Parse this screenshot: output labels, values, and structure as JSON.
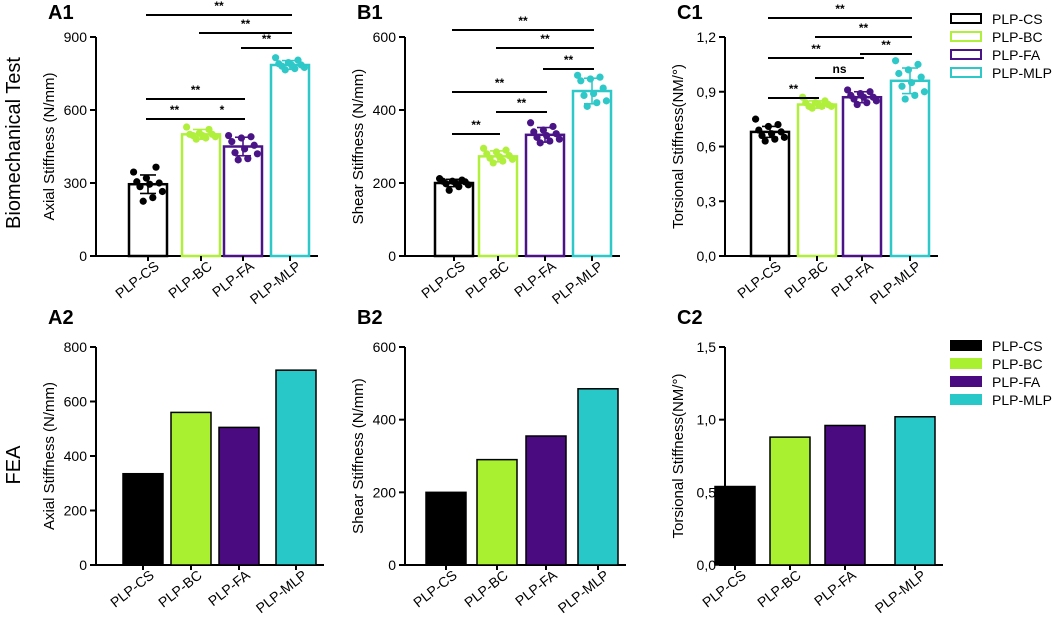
{
  "row_labels": {
    "top": "Biomechanical Test",
    "bottom": "FEA"
  },
  "legend_top": [
    {
      "label": "PLP-CS",
      "color": "#000000",
      "style": "outline"
    },
    {
      "label": "PLP-BC",
      "color": "#b0f03c",
      "style": "outline"
    },
    {
      "label": "PLP-FA",
      "color": "#4a1486",
      "style": "outline"
    },
    {
      "label": "PLP-MLP",
      "color": "#2fc8c8",
      "style": "outline"
    }
  ],
  "legend_bottom": [
    {
      "label": "PLP-CS",
      "color": "#000000",
      "style": "filled"
    },
    {
      "label": "PLP-BC",
      "color": "#a8f030",
      "style": "filled"
    },
    {
      "label": "PLP-FA",
      "color": "#4a0a80",
      "style": "filled"
    },
    {
      "label": "PLP-MLP",
      "color": "#28c8c8",
      "style": "filled"
    }
  ],
  "chart_data": [
    {
      "panel": "A1",
      "type": "bar",
      "style": "outline",
      "categories": [
        "PLP-CS",
        "PLP-BC",
        "PLP-FA",
        "PLP-MLP"
      ],
      "values": [
        295,
        500,
        450,
        785
      ],
      "errors": [
        38,
        20,
        38,
        18
      ],
      "points": [
        [
          345,
          365,
          320,
          305,
          300,
          295,
          285,
          265,
          240,
          225
        ],
        [
          530,
          520,
          505,
          500,
          500,
          495,
          495,
          490,
          485,
          480
        ],
        [
          495,
          490,
          485,
          470,
          455,
          440,
          425,
          420,
          400,
          395
        ],
        [
          815,
          805,
          795,
          790,
          785,
          785,
          780,
          775,
          770,
          765
        ]
      ],
      "ylabel": "Axial Stiffness (N/mm)",
      "ylim": [
        0,
        900
      ],
      "yticks": [
        "0",
        "300",
        "600",
        "900"
      ],
      "significance": [
        {
          "from": 0,
          "to": 1,
          "label": "**"
        },
        {
          "from": 1,
          "to": 2,
          "label": "*"
        },
        {
          "from": 0,
          "to": 2,
          "label": "**"
        },
        {
          "from": 2,
          "to": 3,
          "label": "**"
        },
        {
          "from": 1,
          "to": 3,
          "label": "**"
        },
        {
          "from": 0,
          "to": 3,
          "label": "**"
        }
      ]
    },
    {
      "panel": "B1",
      "type": "bar",
      "style": "outline",
      "categories": [
        "PLP-CS",
        "PLP-BC",
        "PLP-FA",
        "PLP-MLP"
      ],
      "values": [
        200,
        273,
        332,
        452
      ],
      "errors": [
        10,
        15,
        20,
        35
      ],
      "points": [
        [
          212,
          208,
          205,
          205,
          203,
          200,
          198,
          195,
          190,
          180
        ],
        [
          295,
          290,
          285,
          280,
          275,
          272,
          268,
          265,
          260,
          255
        ],
        [
          365,
          355,
          345,
          340,
          335,
          330,
          325,
          320,
          315,
          310
        ],
        [
          495,
          490,
          485,
          480,
          460,
          445,
          440,
          425,
          420,
          410
        ]
      ],
      "ylabel": "Shear Stiffness (N/mm)",
      "ylim": [
        0,
        600
      ],
      "yticks": [
        "0",
        "200",
        "400",
        "600"
      ],
      "significance": [
        {
          "from": 0,
          "to": 1,
          "label": "**"
        },
        {
          "from": 1,
          "to": 2,
          "label": "**"
        },
        {
          "from": 0,
          "to": 2,
          "label": "**"
        },
        {
          "from": 2,
          "to": 3,
          "label": "**"
        },
        {
          "from": 1,
          "to": 3,
          "label": "**"
        },
        {
          "from": 0,
          "to": 3,
          "label": "**"
        }
      ]
    },
    {
      "panel": "C1",
      "type": "bar",
      "style": "outline",
      "categories": [
        "PLP-CS",
        "PLP-BC",
        "PLP-FA",
        "PLP-MLP"
      ],
      "values": [
        0.68,
        0.83,
        0.87,
        0.96
      ],
      "errors": [
        0.03,
        0.02,
        0.03,
        0.07
      ],
      "points": [
        [
          0.75,
          0.72,
          0.71,
          0.69,
          0.68,
          0.67,
          0.66,
          0.65,
          0.64,
          0.63
        ],
        [
          0.87,
          0.85,
          0.84,
          0.84,
          0.83,
          0.83,
          0.82,
          0.82,
          0.82,
          0.81
        ],
        [
          0.91,
          0.9,
          0.89,
          0.88,
          0.87,
          0.87,
          0.86,
          0.85,
          0.84,
          0.83
        ],
        [
          1.07,
          1.05,
          1.02,
          1.0,
          0.98,
          0.95,
          0.93,
          0.9,
          0.88,
          0.86
        ]
      ],
      "ylabel": "Torsional Stiffness(NM/°)",
      "ylim": [
        0,
        1.2
      ],
      "yticks": [
        "0,0",
        "0,3",
        "0,6",
        "0,9",
        "1,2"
      ],
      "significance": [
        {
          "from": 0,
          "to": 1,
          "label": "**"
        },
        {
          "from": 1,
          "to": 2,
          "label": "ns"
        },
        {
          "from": 0,
          "to": 2,
          "label": "**"
        },
        {
          "from": 2,
          "to": 3,
          "label": "**"
        },
        {
          "from": 1,
          "to": 3,
          "label": "**"
        },
        {
          "from": 0,
          "to": 3,
          "label": "**"
        }
      ]
    },
    {
      "panel": "A2",
      "type": "bar",
      "style": "filled",
      "categories": [
        "PLP-CS",
        "PLP-BC",
        "PLP-FA",
        "PLP-MLP"
      ],
      "values": [
        335,
        560,
        505,
        715
      ],
      "ylabel": "Axial Stiffness (N/mm)",
      "ylim": [
        0,
        800
      ],
      "yticks": [
        "0",
        "200",
        "400",
        "600",
        "800"
      ]
    },
    {
      "panel": "B2",
      "type": "bar",
      "style": "filled",
      "categories": [
        "PLP-CS",
        "PLP-BC",
        "PLP-FA",
        "PLP-MLP"
      ],
      "values": [
        200,
        290,
        355,
        485
      ],
      "ylabel": "Shear Stiffness (N/mm)",
      "ylim": [
        0,
        600
      ],
      "yticks": [
        "0",
        "200",
        "400",
        "600"
      ]
    },
    {
      "panel": "C2",
      "type": "bar",
      "style": "filled",
      "categories": [
        "PLP-CS",
        "PLP-BC",
        "PLP-FA",
        "PLP-MLP"
      ],
      "values": [
        0.54,
        0.88,
        0.96,
        1.02
      ],
      "ylabel": "Torsional Stiffness(NM/°)",
      "ylim": [
        0,
        1.5
      ],
      "yticks": [
        "0,0",
        "0,5",
        "1,0",
        "1,5"
      ]
    }
  ]
}
